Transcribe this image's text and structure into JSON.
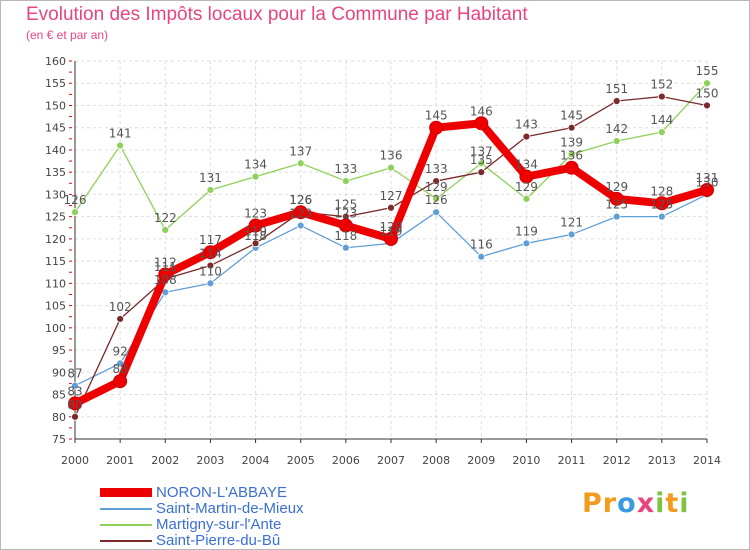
{
  "title": "Evolution des Impôts locaux pour la Commune par Habitant",
  "subtitle": "(en € et par an)",
  "brand": {
    "letters": [
      "P",
      "r",
      "o",
      "x",
      "i",
      "t",
      "i"
    ],
    "colors": [
      "#f29b1d",
      "#f29b1d",
      "#3b9be0",
      "#e8447e",
      "#7fc241",
      "#f29b1d",
      "#7fc241"
    ]
  },
  "chart_data": {
    "type": "line",
    "title": "Evolution des Impôts locaux pour la Commune par Habitant",
    "subtitle": "(en € et par an)",
    "x": [
      "2000",
      "2001",
      "2002",
      "2003",
      "2004",
      "2005",
      "2006",
      "2007",
      "2008",
      "2009",
      "2010",
      "2011",
      "2012",
      "2013",
      "2014"
    ],
    "ylim": [
      75,
      160
    ],
    "yticks": [
      75,
      80,
      85,
      90,
      95,
      100,
      105,
      110,
      115,
      120,
      125,
      130,
      135,
      140,
      145,
      150,
      155,
      160
    ],
    "grid": true,
    "legend_position": "bottom-left",
    "series": [
      {
        "name": "Martigny-sur-l'Ante",
        "color": "#8fd05a",
        "values": [
          126,
          141,
          122,
          131,
          134,
          137,
          133,
          136,
          129,
          137,
          129,
          139,
          142,
          144,
          155
        ],
        "labels": [
          "126",
          "141",
          "122",
          "131",
          "134",
          "137",
          "133",
          "136",
          "129",
          "137",
          "129",
          "139",
          "142",
          "144",
          "155"
        ]
      },
      {
        "name": "Saint-Martin-de-Mieux",
        "color": "#5f9fd8",
        "values": [
          87,
          92,
          108,
          110,
          118,
          123,
          118,
          119,
          126,
          116,
          119,
          121,
          125,
          125,
          130
        ],
        "labels": [
          "87",
          "92",
          "108",
          "110",
          "118",
          "123",
          "118",
          "119",
          "126",
          "116",
          "119",
          "121",
          "125",
          "125",
          "130"
        ]
      },
      {
        "name": "Saint-Pierre-du-Bû",
        "color": "#7a2a2a",
        "values": [
          80,
          102,
          111,
          114,
          119,
          126,
          125,
          127,
          133,
          135,
          143,
          145,
          151,
          152,
          150
        ],
        "labels": [
          "80",
          "102",
          "111",
          "114",
          "119",
          "126",
          "125",
          "127",
          "133",
          "135",
          "143",
          "145",
          "151",
          "152",
          "150"
        ]
      },
      {
        "name": "NORON-L'ABBAYE",
        "color": "#ee0000",
        "values": [
          83,
          88,
          112,
          117,
          123,
          126,
          123,
          120,
          145,
          146,
          134,
          136,
          129,
          128,
          131
        ],
        "labels": [
          "83",
          "88",
          "112",
          "117",
          "123",
          "126",
          "123",
          "120",
          "145",
          "146",
          "134",
          "136",
          "129",
          "128",
          "131"
        ]
      }
    ]
  }
}
